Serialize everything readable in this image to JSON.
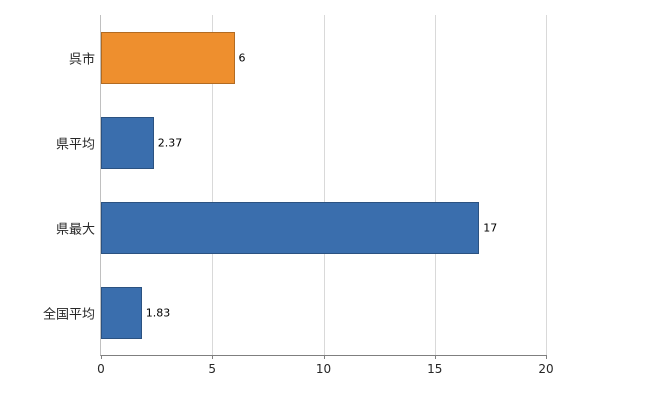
{
  "chart_data": {
    "type": "bar",
    "orientation": "horizontal",
    "title": "",
    "xlabel": "",
    "ylabel": "",
    "categories": [
      "呉市",
      "県平均",
      "県最大",
      "全国平均"
    ],
    "values": [
      6,
      2.37,
      17,
      1.83
    ],
    "value_labels": [
      "6",
      "2.37",
      "17",
      "1.83"
    ],
    "bar_colors": [
      "#ee8f2e",
      "#3a6ead",
      "#3a6ead",
      "#3a6ead"
    ],
    "xlim": [
      0,
      20
    ],
    "xticks": [
      0,
      5,
      10,
      15,
      20
    ],
    "grid": "vertical",
    "legend": "none",
    "background": "#ffffff"
  }
}
